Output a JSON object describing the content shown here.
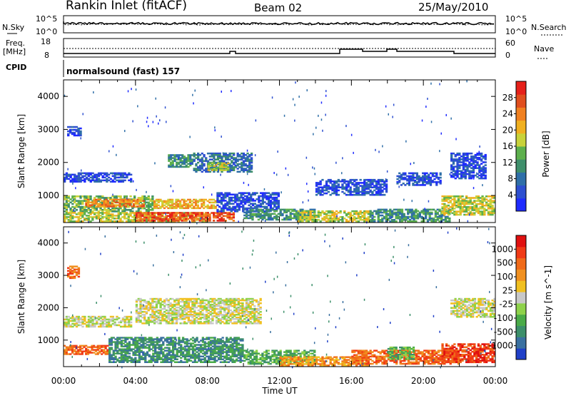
{
  "header": {
    "station": "Rankin Inlet (fitACF)",
    "beam": "Beam 02",
    "date": "25/May/2010"
  },
  "status_panels": {
    "nsky_label": "N.Sky",
    "nsky_top": "10^5",
    "nsky_bottom": "10^0",
    "nsearch_label": "N.Search",
    "nsearch_top": "10^5",
    "nsearch_bottom": "10^0",
    "freq_label": "Freq.",
    "freq_unit": "[MHz]",
    "freq_top": "18",
    "freq_bottom": "8",
    "nave_label": "Nave",
    "nave_top": "60",
    "nave_bottom": "0",
    "cpid_label": "CPID",
    "cpid_value": "normalsound (fast) 157"
  },
  "chart_data": [
    {
      "type": "heatmap",
      "name": "power",
      "ylabel": "Slant Range [km]",
      "ylim": [
        180,
        4500
      ],
      "y_ticks": [
        "1000",
        "2000",
        "3000",
        "4000"
      ],
      "x_ticks": [
        "00:00",
        "04:00",
        "08:00",
        "12:00",
        "16:00",
        "20:00",
        "00:00"
      ],
      "xlim_hours": [
        0,
        24
      ],
      "colorbar": {
        "label": "Power [dB]",
        "ticks": [
          "4",
          "8",
          "12",
          "16",
          "20",
          "24",
          "28"
        ],
        "colors": [
          "#1f2bff",
          "#2d4fd0",
          "#2f6fa8",
          "#3f8f6b",
          "#5db04d",
          "#c8d23a",
          "#f0b020",
          "#f08020",
          "#e04e1e",
          "#e6201a"
        ]
      },
      "regions": [
        {
          "t0": 0.2,
          "t1": 1.0,
          "r0": 2800,
          "r1": 3100,
          "level": 1
        },
        {
          "t0": 0.0,
          "t1": 3.8,
          "r0": 1400,
          "r1": 1700,
          "level": 1
        },
        {
          "t0": 0.0,
          "t1": 5.0,
          "r0": 500,
          "r1": 1000,
          "level": 4
        },
        {
          "t0": 1.2,
          "t1": 4.5,
          "r0": 650,
          "r1": 900,
          "level": 7
        },
        {
          "t0": 0.0,
          "t1": 8.0,
          "r0": 200,
          "r1": 500,
          "level": 5
        },
        {
          "t0": 4.0,
          "t1": 9.5,
          "r0": 220,
          "r1": 500,
          "level": 8
        },
        {
          "t0": 5.0,
          "t1": 8.5,
          "r0": 600,
          "r1": 900,
          "level": 6
        },
        {
          "t0": 5.8,
          "t1": 7.2,
          "r0": 1850,
          "r1": 2250,
          "level": 3
        },
        {
          "t0": 7.2,
          "t1": 10.5,
          "r0": 1700,
          "r1": 2300,
          "level": 2
        },
        {
          "t0": 8.0,
          "t1": 9.2,
          "r0": 1750,
          "r1": 2000,
          "level": 5
        },
        {
          "t0": 8.5,
          "t1": 12.0,
          "r0": 500,
          "r1": 1100,
          "level": 1
        },
        {
          "t0": 10.0,
          "t1": 14.0,
          "r0": 250,
          "r1": 600,
          "level": 3
        },
        {
          "t0": 13.0,
          "t1": 17.0,
          "r0": 200,
          "r1": 550,
          "level": 5
        },
        {
          "t0": 14.0,
          "t1": 18.0,
          "r0": 1000,
          "r1": 1500,
          "level": 1
        },
        {
          "t0": 17.0,
          "t1": 21.5,
          "r0": 200,
          "r1": 600,
          "level": 3
        },
        {
          "t0": 18.5,
          "t1": 21.0,
          "r0": 1300,
          "r1": 1700,
          "level": 1
        },
        {
          "t0": 21.0,
          "t1": 24.0,
          "r0": 400,
          "r1": 1000,
          "level": 5
        },
        {
          "t0": 21.5,
          "t1": 23.5,
          "r0": 1500,
          "r1": 2300,
          "level": 1
        }
      ]
    },
    {
      "type": "heatmap",
      "name": "velocity",
      "ylabel": "Slant Range [km]",
      "ylim": [
        180,
        4500
      ],
      "y_ticks": [
        "1000",
        "2000",
        "3000",
        "4000"
      ],
      "x_ticks": [
        "00:00",
        "04:00",
        "08:00",
        "12:00",
        "16:00",
        "20:00",
        "00:00"
      ],
      "xlabel": "Time UT",
      "xlim_hours": [
        0,
        24
      ],
      "colorbar": {
        "label": "Velocity [m s^-1]",
        "ticks": [
          "1000",
          "500",
          "100",
          "25",
          "-25",
          "-100",
          "-500",
          "-1000"
        ],
        "colors": [
          "#2040c8",
          "#3a70a0",
          "#3c8f6a",
          "#4aab48",
          "#8ed24a",
          "#c8c8c8",
          "#f0c020",
          "#f09020",
          "#f06a18",
          "#f03a16",
          "#e01010"
        ]
      },
      "regions": [
        {
          "t0": 0.2,
          "t1": 0.9,
          "r0": 2900,
          "r1": 3300,
          "level": 8
        },
        {
          "t0": 0.0,
          "t1": 3.8,
          "r0": 1400,
          "r1": 1750,
          "level": 5
        },
        {
          "t0": 0.0,
          "t1": 2.5,
          "r0": 550,
          "r1": 850,
          "level": 8
        },
        {
          "t0": 2.5,
          "t1": 10.0,
          "r0": 300,
          "r1": 1100,
          "level": 2
        },
        {
          "t0": 4.0,
          "t1": 11.0,
          "r0": 1500,
          "r1": 2300,
          "level": 5
        },
        {
          "t0": 10.0,
          "t1": 14.0,
          "r0": 250,
          "r1": 700,
          "level": 3
        },
        {
          "t0": 12.0,
          "t1": 17.0,
          "r0": 200,
          "r1": 500,
          "level": 7
        },
        {
          "t0": 16.0,
          "t1": 22.0,
          "r0": 250,
          "r1": 700,
          "level": 8
        },
        {
          "t0": 18.0,
          "t1": 19.5,
          "r0": 400,
          "r1": 800,
          "level": 3
        },
        {
          "t0": 21.0,
          "t1": 24.0,
          "r0": 300,
          "r1": 900,
          "level": 9
        },
        {
          "t0": 21.5,
          "t1": 24.0,
          "r0": 1700,
          "r1": 2300,
          "level": 5
        }
      ]
    }
  ]
}
